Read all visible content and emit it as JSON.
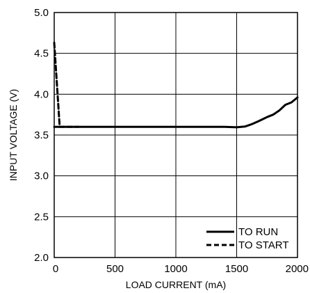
{
  "chart_data": {
    "type": "line",
    "title": "",
    "xlabel": "LOAD CURRENT (mA)",
    "ylabel": "INPUT VOLTAGE (V)",
    "xlim": [
      0,
      2000
    ],
    "ylim": [
      2.0,
      5.0
    ],
    "x_ticks": [
      0,
      500,
      1000,
      1500,
      2000
    ],
    "y_ticks": [
      2.0,
      2.5,
      3.0,
      3.5,
      4.0,
      4.5,
      5.0
    ],
    "x_tick_labels": [
      "0",
      "500",
      "1000",
      "1500",
      "2000"
    ],
    "y_tick_labels": [
      "2.0",
      "2.5",
      "3.0",
      "3.5",
      "4.0",
      "4.5",
      "5.0"
    ],
    "grid": true,
    "legend": "bottom-right",
    "series": [
      {
        "name": "TO RUN",
        "style": "solid",
        "x": [
          0,
          500,
          1000,
          1400,
          1500,
          1570,
          1620,
          1680,
          1750,
          1800,
          1850,
          1900,
          1950,
          2000
        ],
        "y": [
          3.6,
          3.6,
          3.6,
          3.6,
          3.595,
          3.605,
          3.63,
          3.67,
          3.72,
          3.75,
          3.8,
          3.87,
          3.9,
          3.96
        ]
      },
      {
        "name": "TO START",
        "style": "dashed",
        "x": [
          0,
          45,
          60,
          200
        ],
        "y": [
          4.63,
          3.6,
          3.6,
          3.6
        ]
      }
    ]
  }
}
